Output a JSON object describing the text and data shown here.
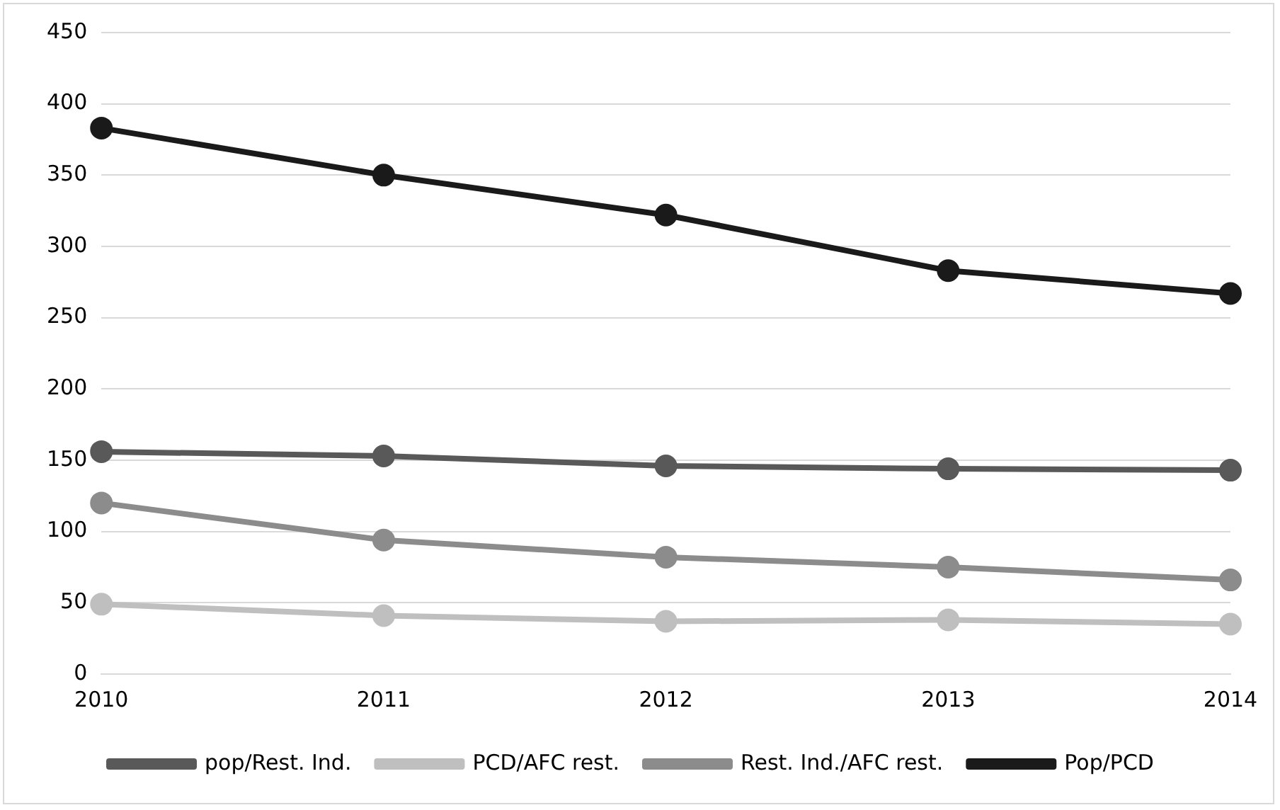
{
  "chart_data": {
    "type": "line",
    "categories": [
      "2010",
      "2011",
      "2012",
      "2013",
      "2014"
    ],
    "series": [
      {
        "name": "pop/Rest. Ind.",
        "color": "#595959",
        "values": [
          156,
          153,
          146,
          144,
          143
        ]
      },
      {
        "name": "PCD/AFC rest.",
        "color": "#bfbfbf",
        "values": [
          49,
          41,
          37,
          38,
          35
        ]
      },
      {
        "name": "Rest. Ind./AFC rest.",
        "color": "#8c8c8c",
        "values": [
          120,
          94,
          82,
          75,
          66
        ]
      },
      {
        "name": "Pop/PCD",
        "color": "#1a1a1a",
        "values": [
          383,
          350,
          322,
          283,
          267
        ]
      }
    ],
    "ylim": [
      0,
      450
    ],
    "yticks": [
      0,
      50,
      100,
      150,
      200,
      250,
      300,
      350,
      400,
      450
    ],
    "grid": "y",
    "legend": "bottom",
    "marker": "circle",
    "line_style": "solid"
  }
}
